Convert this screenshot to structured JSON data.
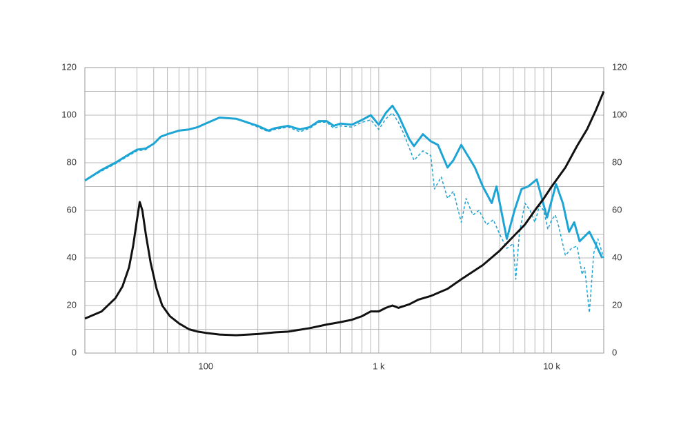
{
  "chart_data": {
    "type": "line",
    "xscale": "log",
    "xlim": [
      20,
      20000
    ],
    "xticks": [
      {
        "value": 100,
        "label": "100"
      },
      {
        "value": 1000,
        "label": "1 k"
      },
      {
        "value": 10000,
        "label": "10 k"
      }
    ],
    "xminor_ticks": [
      20,
      30,
      40,
      50,
      60,
      70,
      80,
      90,
      200,
      300,
      400,
      500,
      600,
      700,
      800,
      900,
      2000,
      3000,
      4000,
      5000,
      6000,
      7000,
      8000,
      9000,
      20000
    ],
    "ylim": [
      0,
      120
    ],
    "yticks": [
      0,
      20,
      40,
      60,
      80,
      100,
      120
    ],
    "yminor_ticks": [
      10,
      30,
      50,
      70,
      90,
      110
    ],
    "y2lim": [
      0,
      120
    ],
    "y2ticks": [
      0,
      20,
      40,
      60,
      80,
      100,
      120
    ],
    "grid": true,
    "series": [
      {
        "color": "#1ca4d4",
        "dashed": false,
        "x": [
          20,
          25,
          30,
          35,
          40,
          45,
          50,
          55,
          60,
          70,
          80,
          90,
          100,
          120,
          150,
          200,
          230,
          250,
          300,
          350,
          400,
          450,
          500,
          550,
          600,
          700,
          800,
          900,
          1000,
          1100,
          1200,
          1300,
          1500,
          1600,
          1800,
          2000,
          2200,
          2500,
          2700,
          3000,
          3600,
          4000,
          4500,
          4800,
          5500,
          6100,
          6700,
          7300,
          8200,
          9400,
          10600,
          11600,
          12600,
          13500,
          14500,
          16500,
          17900,
          19600
        ],
        "values": [
          72.5,
          77,
          80,
          83,
          85.5,
          86,
          88,
          91,
          92,
          93.5,
          94,
          95,
          96.5,
          99,
          98.5,
          95.5,
          93.5,
          94.5,
          95.5,
          94,
          95,
          97.5,
          97.5,
          95.5,
          96.5,
          96,
          98,
          100,
          96,
          101,
          104,
          100,
          90,
          87,
          92,
          89,
          87.5,
          78,
          81,
          87.5,
          78,
          70,
          63,
          70,
          48,
          60,
          69,
          70,
          73,
          57,
          71,
          63,
          51,
          55,
          47,
          51,
          46,
          40
        ]
      },
      {
        "color": "#1ca4d4",
        "dashed": true,
        "x": [
          20,
          25,
          30,
          35,
          40,
          45,
          50,
          55,
          60,
          70,
          80,
          90,
          100,
          120,
          150,
          200,
          230,
          250,
          300,
          350,
          400,
          450,
          500,
          550,
          600,
          700,
          800,
          900,
          1000,
          1100,
          1200,
          1300,
          1400,
          1600,
          1800,
          2000,
          2100,
          2300,
          2500,
          2700,
          3000,
          3200,
          3500,
          3800,
          4200,
          4600,
          5000,
          5500,
          6000,
          6200,
          6500,
          7000,
          7500,
          8000,
          8500,
          9000,
          9500,
          10000,
          10500,
          11000,
          12000,
          13000,
          14000,
          15000,
          15500,
          16500,
          17500,
          18500,
          20000
        ],
        "values": [
          72.5,
          76.5,
          79.5,
          82.5,
          85,
          85.5,
          88,
          91,
          92,
          93.5,
          94,
          95,
          96.5,
          99,
          98.5,
          95,
          93,
          94,
          95,
          93,
          94.5,
          97,
          97,
          94.5,
          95.5,
          95,
          97,
          98,
          94,
          98.5,
          101,
          97,
          92,
          81,
          85,
          83,
          69,
          74,
          65,
          68,
          55,
          65,
          58,
          60,
          54,
          56,
          50,
          44,
          46,
          31,
          50,
          63,
          60,
          55,
          62,
          60,
          52,
          56,
          58,
          53,
          41,
          44,
          45,
          33,
          36,
          17,
          42,
          48,
          40
        ]
      },
      {
        "color": "#111111",
        "dashed": false,
        "x": [
          20,
          25,
          30,
          33,
          36,
          38,
          40,
          41.5,
          43,
          45,
          48,
          52,
          56,
          62,
          70,
          80,
          90,
          100,
          120,
          150,
          200,
          250,
          300,
          400,
          500,
          600,
          700,
          800,
          900,
          1000,
          1100,
          1200,
          1300,
          1500,
          1700,
          2000,
          2500,
          3000,
          4000,
          5000,
          6000,
          7000,
          8000,
          9000,
          10000,
          12000,
          14000,
          16000,
          18000,
          20000
        ],
        "values": [
          14.5,
          17.5,
          23,
          28,
          36,
          45,
          56,
          63.5,
          60,
          50,
          38,
          27,
          20,
          15.5,
          12.5,
          10,
          9,
          8.5,
          7.8,
          7.5,
          8,
          8.7,
          9,
          10.5,
          12,
          13,
          14,
          15.5,
          17.5,
          17.5,
          19,
          20,
          19,
          20.5,
          22.5,
          24,
          27,
          31,
          37,
          43,
          49,
          54,
          60,
          65,
          70,
          78,
          87,
          94,
          102,
          110
        ]
      }
    ]
  }
}
